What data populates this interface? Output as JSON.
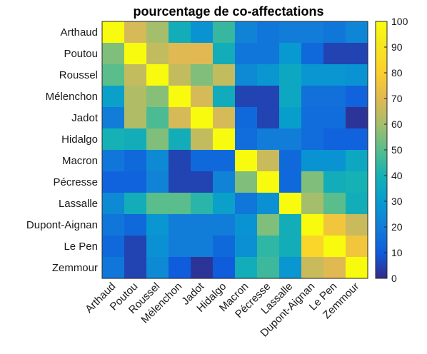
{
  "chart_data": {
    "type": "heatmap",
    "title": "pourcentage de co-affectations",
    "rows": [
      "Arthaud",
      "Poutou",
      "Roussel",
      "Mélenchon",
      "Jadot",
      "Hidalgo",
      "Macron",
      "Pécresse",
      "Lassalle",
      "Dupont-Aignan",
      "Le Pen",
      "Zemmour"
    ],
    "columns": [
      "Arthaud",
      "Poutou",
      "Roussel",
      "Mélenchon",
      "Jadot",
      "Hidalgo",
      "Macron",
      "Pécresse",
      "Lassalle",
      "Dupont-Aignan",
      "Le Pen",
      "Zemmour"
    ],
    "values": [
      [
        100,
        68,
        60,
        38,
        27,
        45,
        22,
        18,
        20,
        20,
        18,
        23
      ],
      [
        55,
        100,
        65,
        70,
        70,
        38,
        18,
        18,
        29,
        14,
        5,
        5
      ],
      [
        50,
        65,
        100,
        65,
        55,
        65,
        24,
        28,
        35,
        28,
        28,
        27
      ],
      [
        32,
        62,
        56,
        100,
        68,
        37,
        5,
        5,
        35,
        16,
        16,
        12
      ],
      [
        20,
        62,
        48,
        68,
        100,
        68,
        14,
        5,
        31,
        15,
        15,
        2
      ],
      [
        40,
        38,
        55,
        38,
        65,
        100,
        15,
        20,
        20,
        15,
        12,
        12
      ],
      [
        18,
        14,
        24,
        5,
        14,
        14,
        100,
        66,
        14,
        27,
        27,
        35
      ],
      [
        12,
        12,
        22,
        5,
        5,
        22,
        55,
        100,
        14,
        55,
        38,
        40
      ],
      [
        24,
        38,
        50,
        50,
        43,
        32,
        18,
        26,
        100,
        60,
        50,
        38
      ],
      [
        18,
        14,
        28,
        20,
        20,
        20,
        27,
        55,
        38,
        100,
        76,
        66
      ],
      [
        14,
        5,
        26,
        20,
        20,
        14,
        26,
        44,
        38,
        83,
        100,
        76
      ],
      [
        18,
        5,
        24,
        10,
        2,
        10,
        38,
        46,
        28,
        66,
        70,
        100
      ]
    ],
    "colorbar": {
      "min": 0,
      "max": 100,
      "ticks": [
        0,
        10,
        20,
        30,
        40,
        50,
        60,
        70,
        80,
        90,
        100
      ]
    },
    "colormap": "parula"
  }
}
